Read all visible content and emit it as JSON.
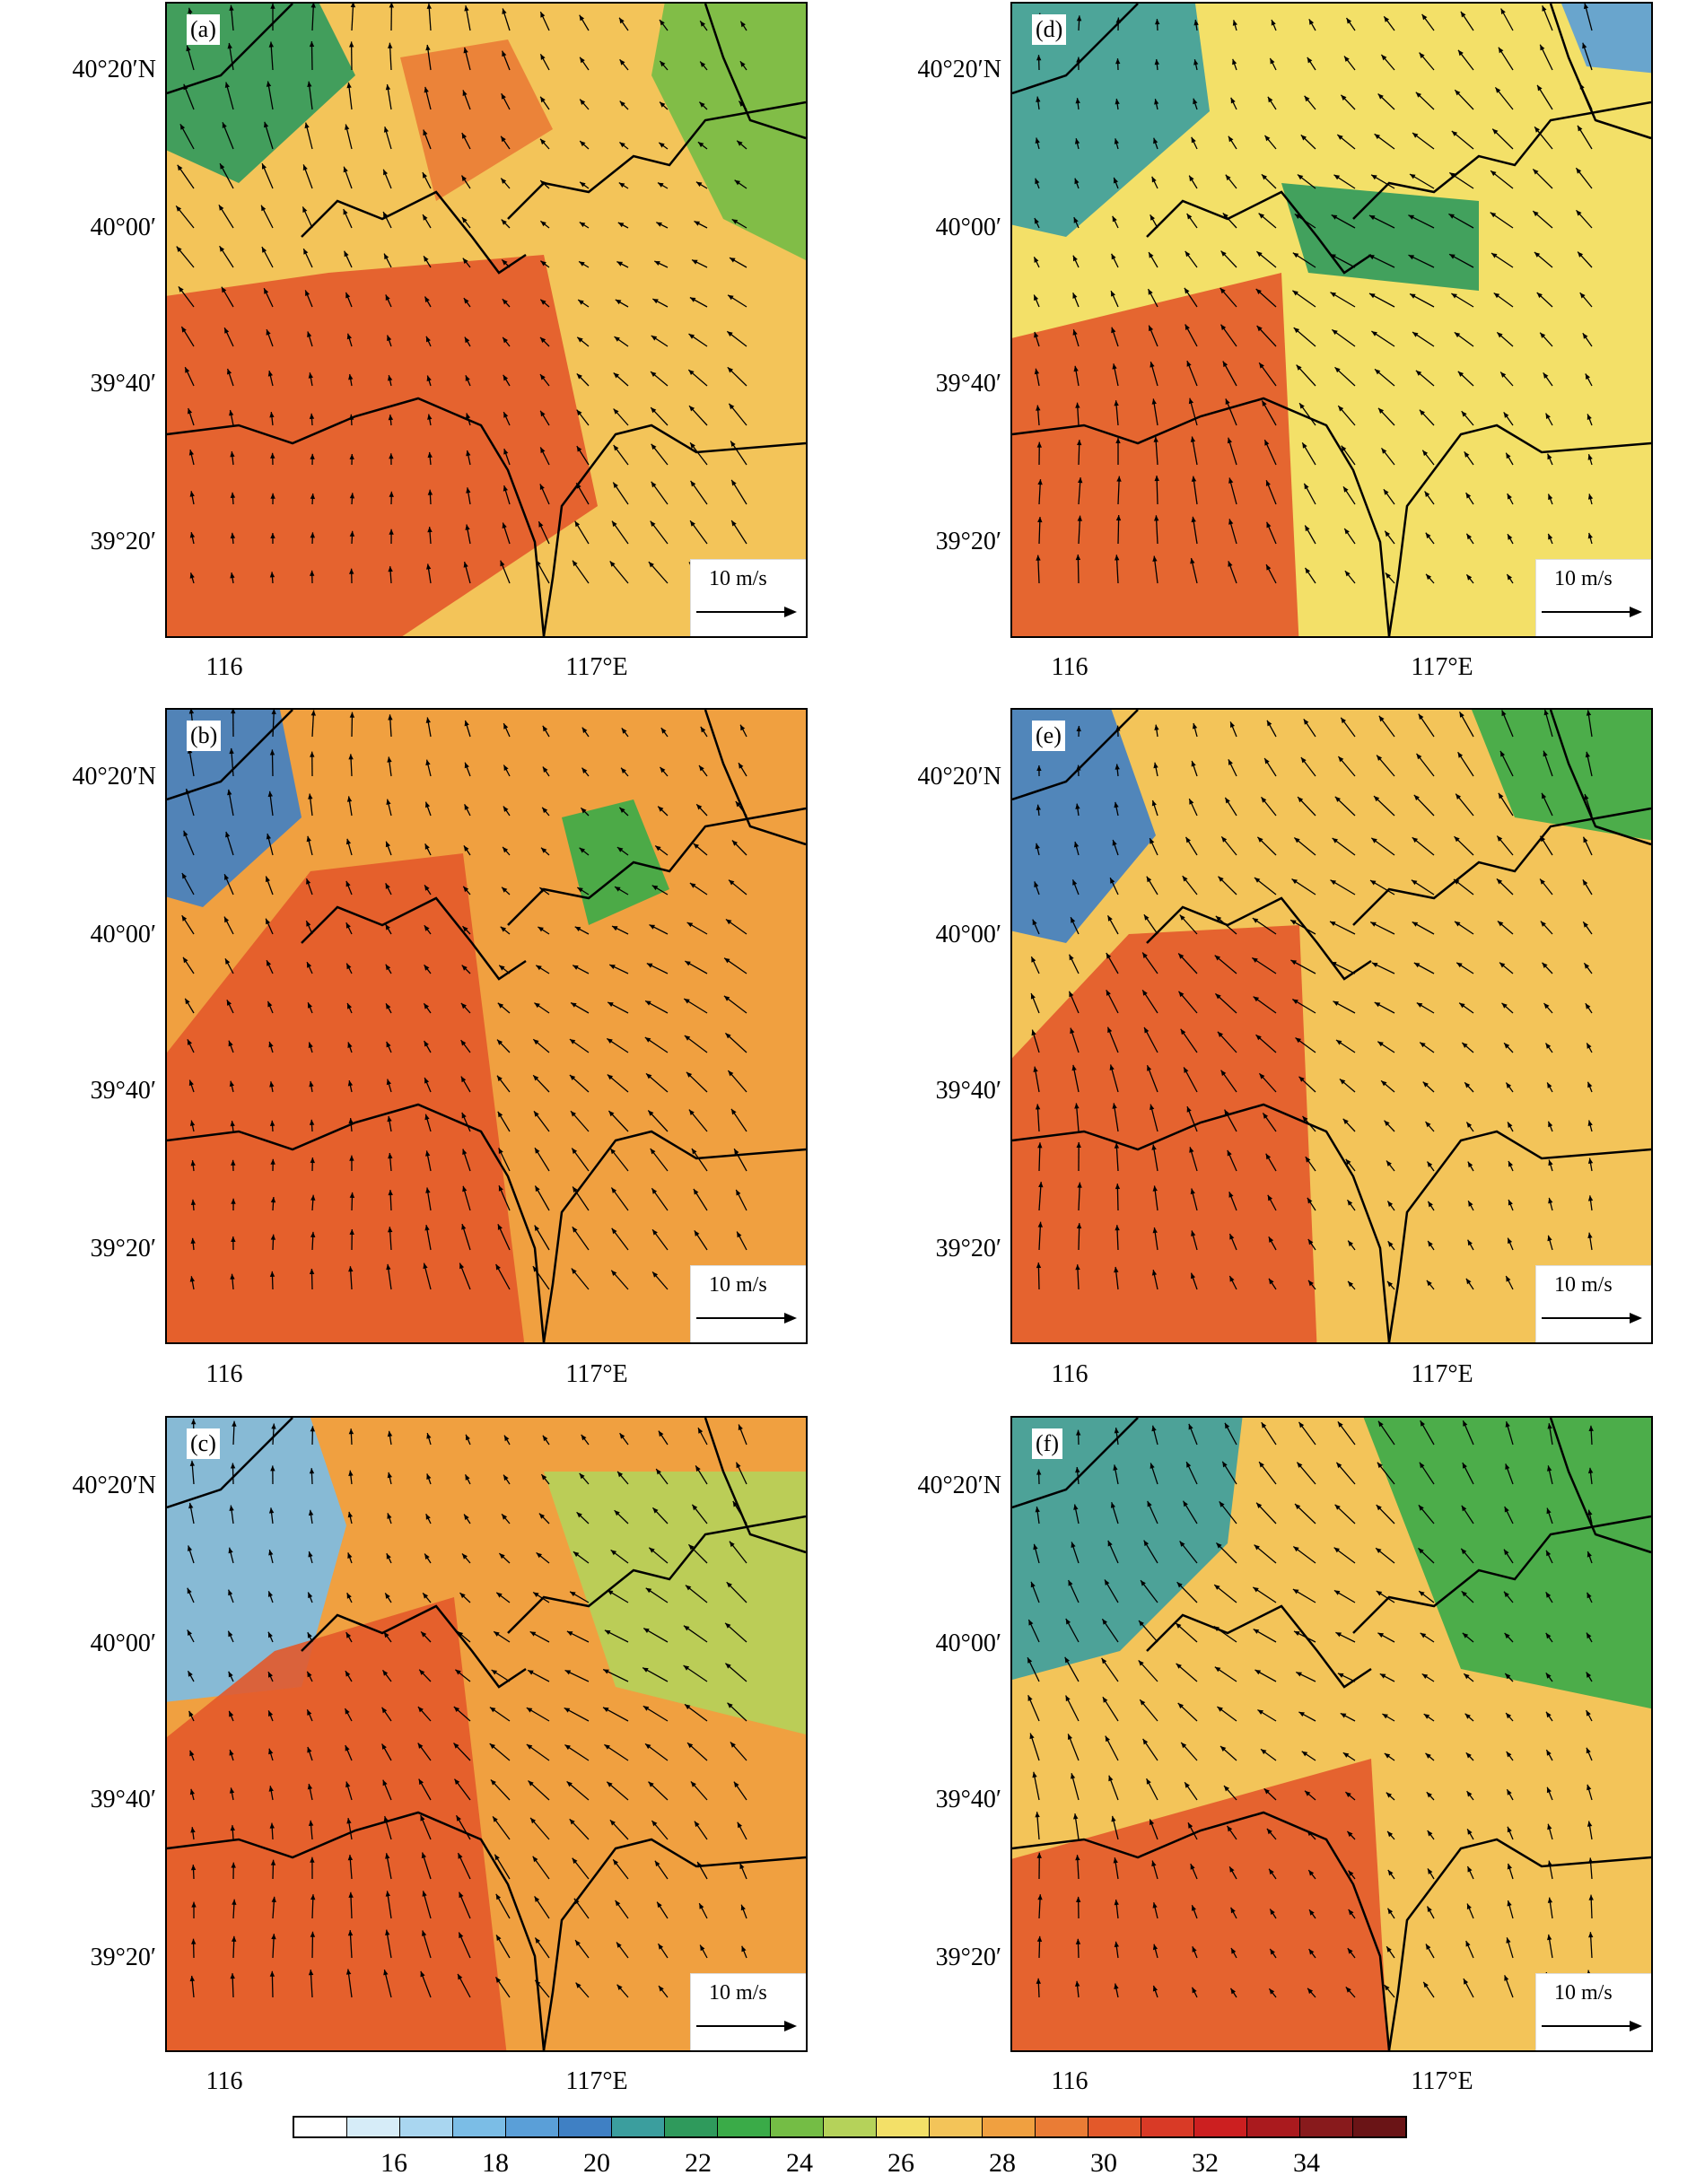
{
  "panels": [
    {
      "label": "(a)"
    },
    {
      "label": "(b)"
    },
    {
      "label": "(c)"
    },
    {
      "label": "(d)"
    },
    {
      "label": "(e)"
    },
    {
      "label": "(f)"
    }
  ],
  "y_ticks": [
    "40°20′N",
    "40°00′",
    "39°40′",
    "39°20′"
  ],
  "x_ticks": [
    "116",
    "117°E"
  ],
  "wind_reference": "10 m/s",
  "colorbar": {
    "labels": [
      "16",
      "18",
      "20",
      "22",
      "24",
      "26",
      "28",
      "30",
      "32",
      "34"
    ],
    "colors": [
      "#ffffff",
      "#d6ecf8",
      "#a9d6f0",
      "#7bbde6",
      "#5a9fd8",
      "#3f80c4",
      "#3b9e9e",
      "#2f9a5c",
      "#3aab48",
      "#74bd45",
      "#b5d25a",
      "#f3e068",
      "#f3c459",
      "#f0a040",
      "#ea7c35",
      "#e3592a",
      "#d93a26",
      "#cc1f20",
      "#aa1a1e",
      "#881a1c",
      "#6a1416"
    ]
  }
}
